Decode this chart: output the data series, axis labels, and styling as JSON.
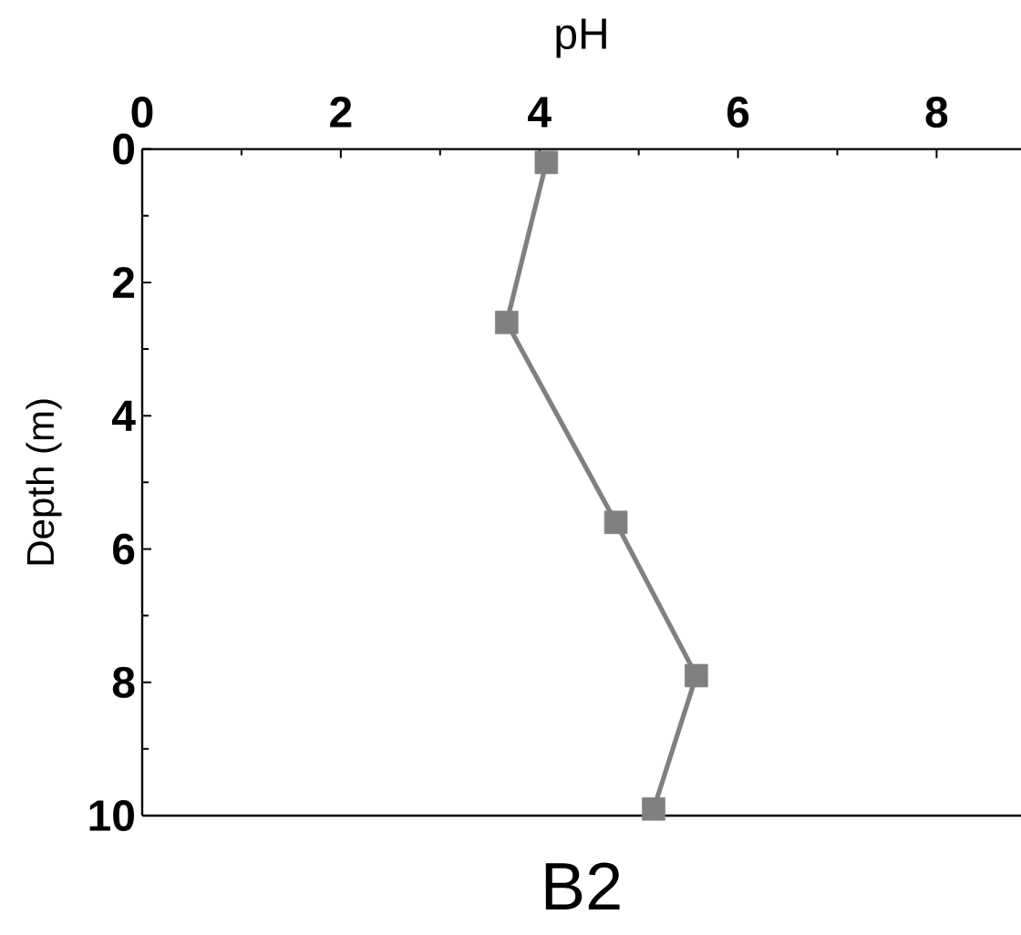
{
  "chart_data": {
    "type": "line",
    "title": "B2",
    "xlabel": "pH",
    "ylabel": "Depth (m)",
    "xlim": [
      0,
      8.85
    ],
    "ylim": [
      10,
      0
    ],
    "xticks": [
      0,
      {
        "value": 1,
        "label": null
      },
      2,
      {
        "value": 3,
        "label": null
      },
      4,
      {
        "value": 5,
        "label": null
      },
      6,
      {
        "value": 7,
        "label": null
      },
      8
    ],
    "yticks": [
      0,
      {
        "value": 1,
        "label": null
      },
      2,
      {
        "value": 3,
        "label": null
      },
      4,
      {
        "value": 5,
        "label": null
      },
      6,
      {
        "value": 7,
        "label": null
      },
      8,
      {
        "value": 9,
        "label": null
      },
      10
    ],
    "series": [
      {
        "color": "#808080",
        "x": [
          4.07,
          3.67,
          4.77,
          5.58,
          5.15
        ],
        "values": [
          0.2,
          2.6,
          5.6,
          7.9,
          9.9
        ]
      }
    ],
    "marker": "square",
    "line_style": "solid",
    "grid": false,
    "legend": false
  }
}
